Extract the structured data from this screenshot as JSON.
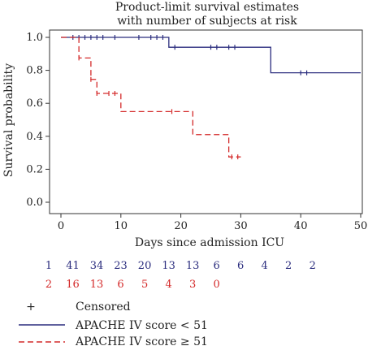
{
  "chart_data": {
    "type": "line",
    "title": [
      "Product-limit survival estimates",
      "with number of subjects at risk"
    ],
    "xlabel": "Days since admission ICU",
    "ylabel": "Survival probability",
    "xlim": [
      0,
      50
    ],
    "ylim": [
      0,
      1
    ],
    "xticks": [
      0,
      10,
      20,
      30,
      40,
      50
    ],
    "yticks": [
      0.0,
      0.2,
      0.4,
      0.6,
      0.8,
      1.0
    ],
    "ytick_labels": [
      "0.0",
      "0.2",
      "0.4",
      "0.6",
      "0.8",
      "1.0"
    ],
    "grid": false,
    "series": [
      {
        "name": "APACHE IV score < 51",
        "color": "#2b2d7e",
        "dash": "solid",
        "steps": [
          [
            0,
            1.0
          ],
          [
            18,
            0.94
          ],
          [
            35,
            0.785
          ],
          [
            50,
            0.785
          ]
        ],
        "censored": [
          [
            2,
            1.0
          ],
          [
            3,
            1.0
          ],
          [
            4,
            1.0
          ],
          [
            5,
            1.0
          ],
          [
            6,
            1.0
          ],
          [
            7,
            1.0
          ],
          [
            9,
            1.0
          ],
          [
            13,
            1.0
          ],
          [
            15,
            1.0
          ],
          [
            16,
            1.0
          ],
          [
            17,
            1.0
          ],
          [
            19,
            0.94
          ],
          [
            25,
            0.94
          ],
          [
            26,
            0.94
          ],
          [
            28,
            0.94
          ],
          [
            29,
            0.94
          ],
          [
            40,
            0.785
          ],
          [
            41,
            0.785
          ]
        ]
      },
      {
        "name": "APACHE IV score ≥ 51",
        "color": "#d42a2a",
        "dash": "dashed",
        "steps": [
          [
            0,
            1.0
          ],
          [
            3,
            0.875
          ],
          [
            5,
            0.745
          ],
          [
            6,
            0.66
          ],
          [
            10,
            0.55
          ],
          [
            22,
            0.41
          ],
          [
            28,
            0.275
          ],
          [
            30,
            0.275
          ]
        ],
        "censored": [
          [
            3,
            0.875
          ],
          [
            5,
            0.745
          ],
          [
            6,
            0.66
          ],
          [
            8,
            0.66
          ],
          [
            9,
            0.66
          ],
          [
            18.5,
            0.55
          ],
          [
            28.5,
            0.275
          ],
          [
            29.5,
            0.275
          ]
        ]
      }
    ],
    "at_risk": {
      "x_positions": [
        0,
        4,
        8,
        12,
        16,
        20,
        24,
        28,
        32,
        36,
        40,
        44
      ],
      "rows": [
        {
          "color": "#2b2d7e",
          "values": [
            "1",
            "41",
            "34",
            "23",
            "20",
            "13",
            "13",
            "6",
            "6",
            "4",
            "2",
            "2"
          ]
        },
        {
          "color": "#d42a2a",
          "values": [
            "2",
            "16",
            "13",
            "6",
            "5",
            "4",
            "3",
            "0"
          ]
        }
      ]
    },
    "legend": {
      "placement": "bottom-left",
      "censored_symbol": "+",
      "censored_label": "Censored"
    }
  }
}
